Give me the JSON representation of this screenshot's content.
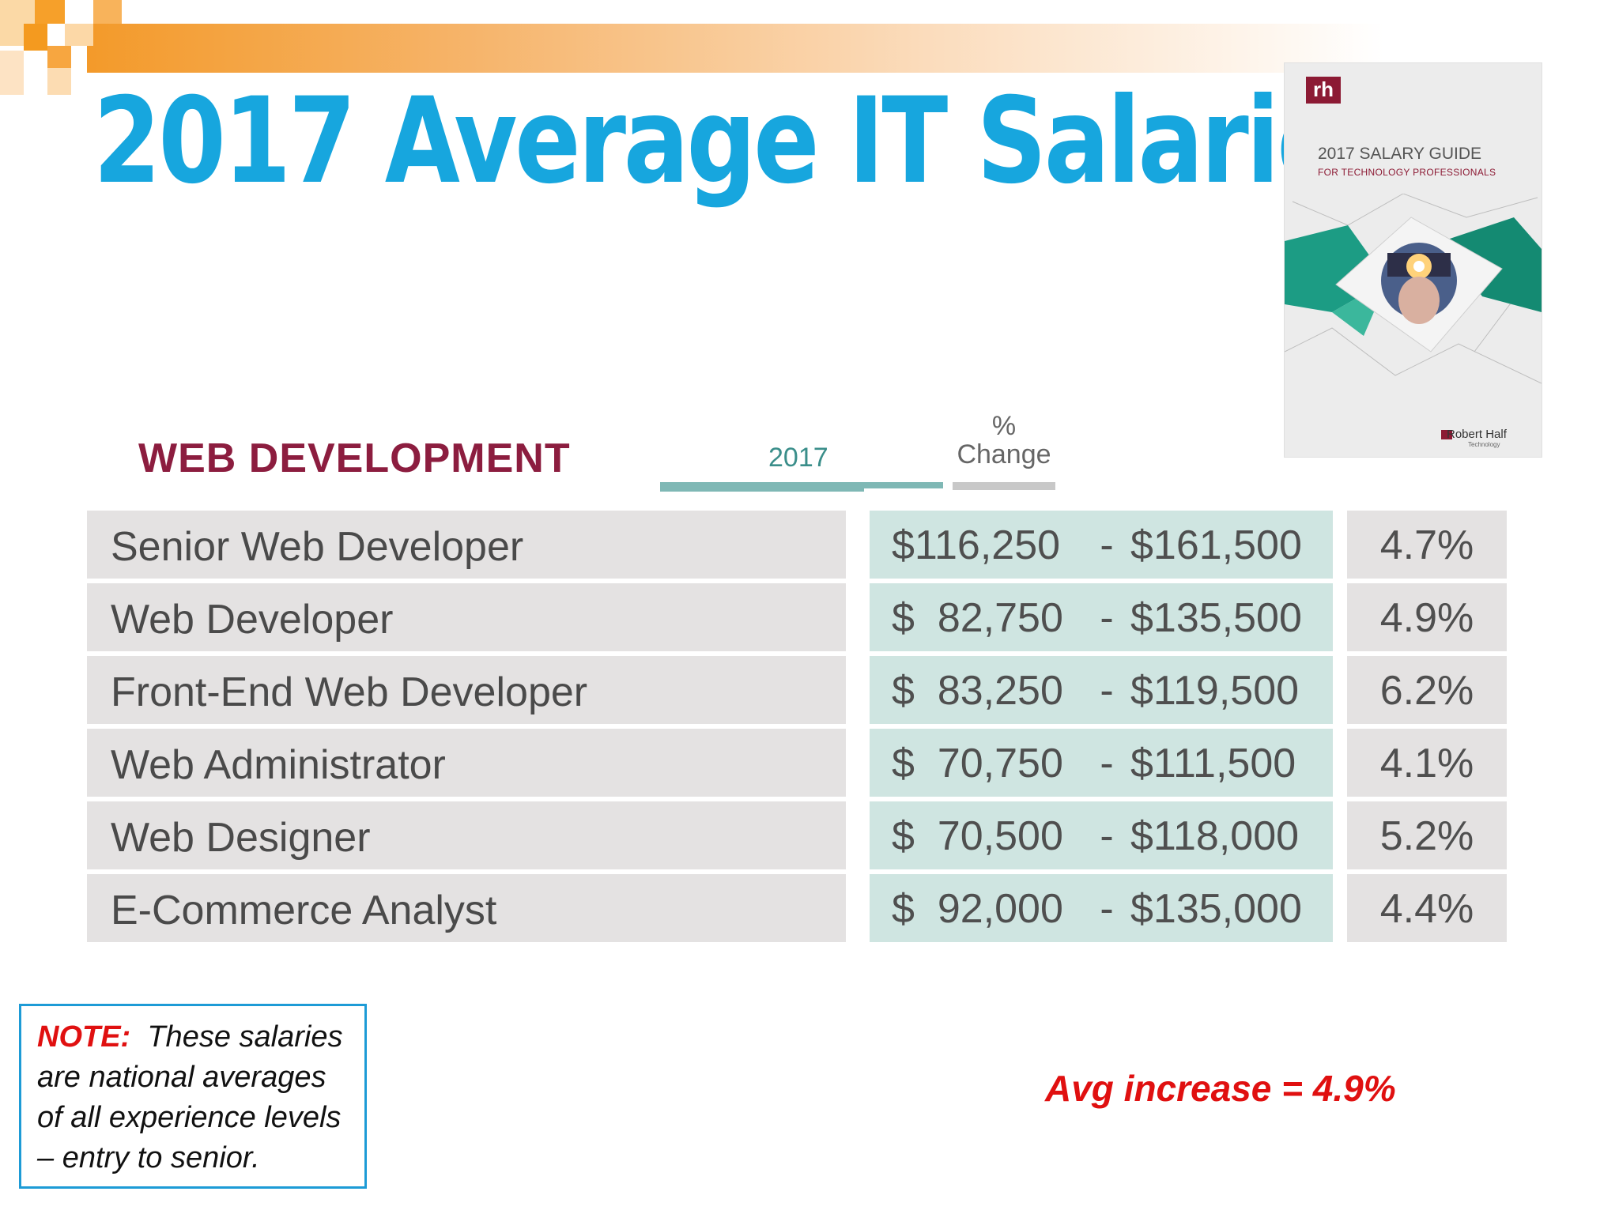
{
  "slide": {
    "title": "2017 Average IT Salaries"
  },
  "cover": {
    "logo": "rh",
    "title": "2017 SALARY GUIDE",
    "subtitle": "FOR TECHNOLOGY PROFESSIONALS",
    "brand": "Robert Half",
    "brand_sub": "Technology"
  },
  "table": {
    "section": "WEB DEVELOPMENT",
    "col_year": "2017",
    "col_change": [
      "%",
      "Change"
    ],
    "rows": [
      {
        "role": "Senior Web Developer",
        "low": "$116,250",
        "high": "$161,500",
        "change": "4.7%"
      },
      {
        "role": "Web Developer",
        "low": "$  82,750",
        "high": "$135,500",
        "change": "4.9%"
      },
      {
        "role": "Front-End Web Developer",
        "low": "$  83,250",
        "high": "$119,500",
        "change": "6.2%"
      },
      {
        "role": "Web Administrator",
        "low": "$  70,750",
        "high": "$111,500",
        "change": "4.1%"
      },
      {
        "role": "Web Designer",
        "low": "$  70,500",
        "high": "$118,000",
        "change": "5.2%"
      },
      {
        "role": "E-Commerce Analyst",
        "low": "$  92,000",
        "high": "$135,000",
        "change": "4.4%"
      }
    ],
    "dash": "-"
  },
  "note": {
    "label": "NOTE:",
    "text": "These salaries are national averages of all experience levels – entry to senior."
  },
  "avg_increase": "Avg increase = 4.9%"
}
